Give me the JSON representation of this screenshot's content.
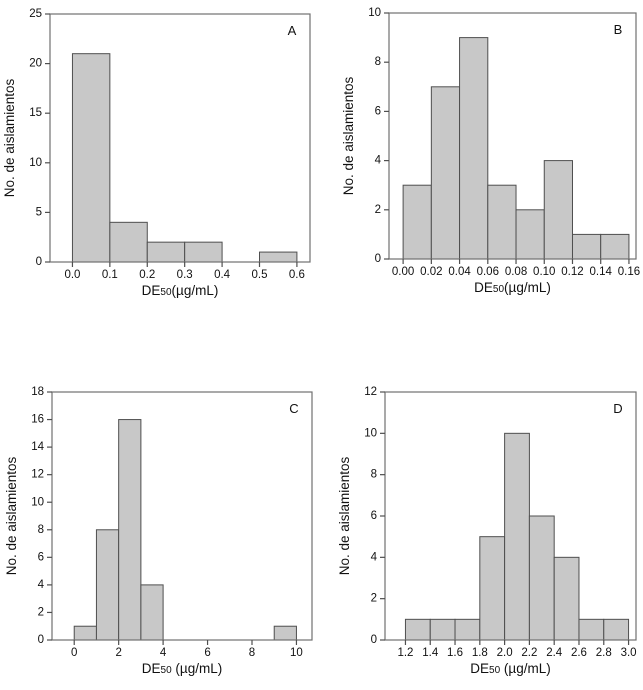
{
  "figure": {
    "background": "#ffffff",
    "description": "Four-panel histogram figure (A, B, C, D)"
  },
  "colors": {
    "bar_fill": "#c8c8c8",
    "bar_stroke": "#4f4f4f",
    "frame": "#707070",
    "tick": "#4f4f4f",
    "text": "#111111"
  },
  "chart_data": [
    {
      "type": "bar",
      "panel_label": "A",
      "ylabel": "No. de aislamientos",
      "xlabel_text": "DE50(µg/mL)",
      "xlabel_parts": {
        "base": "DE",
        "sub": "50",
        "rest": "(µg/mL)"
      },
      "bin_start": 0,
      "bin_width": 0.1,
      "bin_edges": [
        0,
        0.1,
        0.2,
        0.3,
        0.4,
        0.5,
        0.6
      ],
      "values": [
        21,
        4,
        2,
        2,
        0,
        1
      ],
      "xlim": [
        -0.06,
        0.635
      ],
      "ylim": [
        0,
        25
      ],
      "xticks": [
        0,
        0.1,
        0.2,
        0.3,
        0.4,
        0.5,
        0.6
      ],
      "xtick_labels": [
        "0.0",
        "0.1",
        "0.2",
        "0.3",
        "0.4",
        "0.5",
        "0.6"
      ],
      "yticks": [
        0,
        5,
        10,
        15,
        20,
        25
      ],
      "ytick_labels": [
        "0",
        "5",
        "10",
        "15",
        "20",
        "25"
      ],
      "grid": false,
      "legend": null
    },
    {
      "type": "bar",
      "panel_label": "B",
      "ylabel": "No. de aislamientos",
      "xlabel_text": "DE50(µg/mL)",
      "xlabel_parts": {
        "base": "DE",
        "sub": "50",
        "rest": "(µg/mL)"
      },
      "bin_start": 0,
      "bin_width": 0.02,
      "bin_edges": [
        0,
        0.02,
        0.04,
        0.06,
        0.08,
        0.1,
        0.12,
        0.14,
        0.16
      ],
      "values": [
        3,
        7,
        9,
        3,
        2,
        4,
        1,
        1
      ],
      "xlim": [
        -0.01,
        0.165
      ],
      "ylim": [
        0,
        10
      ],
      "xticks": [
        0,
        0.02,
        0.04,
        0.06,
        0.08,
        0.1,
        0.12,
        0.14,
        0.16
      ],
      "xtick_labels": [
        "0.00",
        "0.02",
        "0.04",
        "0.06",
        "0.08",
        "0.10",
        "0.12",
        "0.14",
        "0.16"
      ],
      "yticks": [
        0,
        2,
        4,
        6,
        8,
        10
      ],
      "ytick_labels": [
        "0",
        "2",
        "4",
        "6",
        "8",
        "10"
      ],
      "grid": false,
      "legend": null
    },
    {
      "type": "bar",
      "panel_label": "C",
      "ylabel": "No. de aislamientos",
      "xlabel_text": "DE50 (µg/mL)",
      "xlabel_parts": {
        "base": "DE",
        "sub": "50",
        "rest": " (µg/mL)"
      },
      "bin_start": 0,
      "bin_width": 1,
      "bin_edges": [
        0,
        1,
        2,
        3,
        4,
        5,
        6,
        7,
        8,
        9,
        10
      ],
      "values": [
        1,
        8,
        16,
        4,
        0,
        0,
        0,
        0,
        0,
        1
      ],
      "xlim": [
        -1.0,
        10.7
      ],
      "ylim": [
        0,
        18
      ],
      "xticks": [
        0,
        2,
        4,
        6,
        8,
        10
      ],
      "xtick_labels": [
        "0",
        "2",
        "4",
        "6",
        "8",
        "10"
      ],
      "yticks": [
        0,
        2,
        4,
        6,
        8,
        10,
        12,
        14,
        16,
        18
      ],
      "ytick_labels": [
        "0",
        "2",
        "4",
        "6",
        "8",
        "10",
        "12",
        "14",
        "16",
        "18"
      ],
      "grid": false,
      "legend": null
    },
    {
      "type": "bar",
      "panel_label": "D",
      "ylabel": "No. de aislamientos",
      "xlabel_text": "DE50 (µg/mL)",
      "xlabel_parts": {
        "base": "DE",
        "sub": "50",
        "rest": " (µg/mL)"
      },
      "bin_start": 1.2,
      "bin_width": 0.2,
      "bin_edges": [
        1.2,
        1.4,
        1.6,
        1.8,
        2.0,
        2.2,
        2.4,
        2.6,
        2.8,
        3.0
      ],
      "values": [
        1,
        1,
        1,
        5,
        10,
        6,
        4,
        1,
        1
      ],
      "xlim": [
        1.035,
        3.06
      ],
      "ylim": [
        0,
        12
      ],
      "xticks": [
        1.2,
        1.4,
        1.6,
        1.8,
        2.0,
        2.2,
        2.4,
        2.6,
        2.8,
        3.0
      ],
      "xtick_labels": [
        "1.2",
        "1.4",
        "1.6",
        "1.8",
        "2.0",
        "2.2",
        "2.4",
        "2.6",
        "2.8",
        "3.0"
      ],
      "yticks": [
        0,
        2,
        4,
        6,
        8,
        10,
        12
      ],
      "ytick_labels": [
        "0",
        "2",
        "4",
        "6",
        "8",
        "10",
        "12"
      ],
      "grid": false,
      "legend": null
    }
  ]
}
